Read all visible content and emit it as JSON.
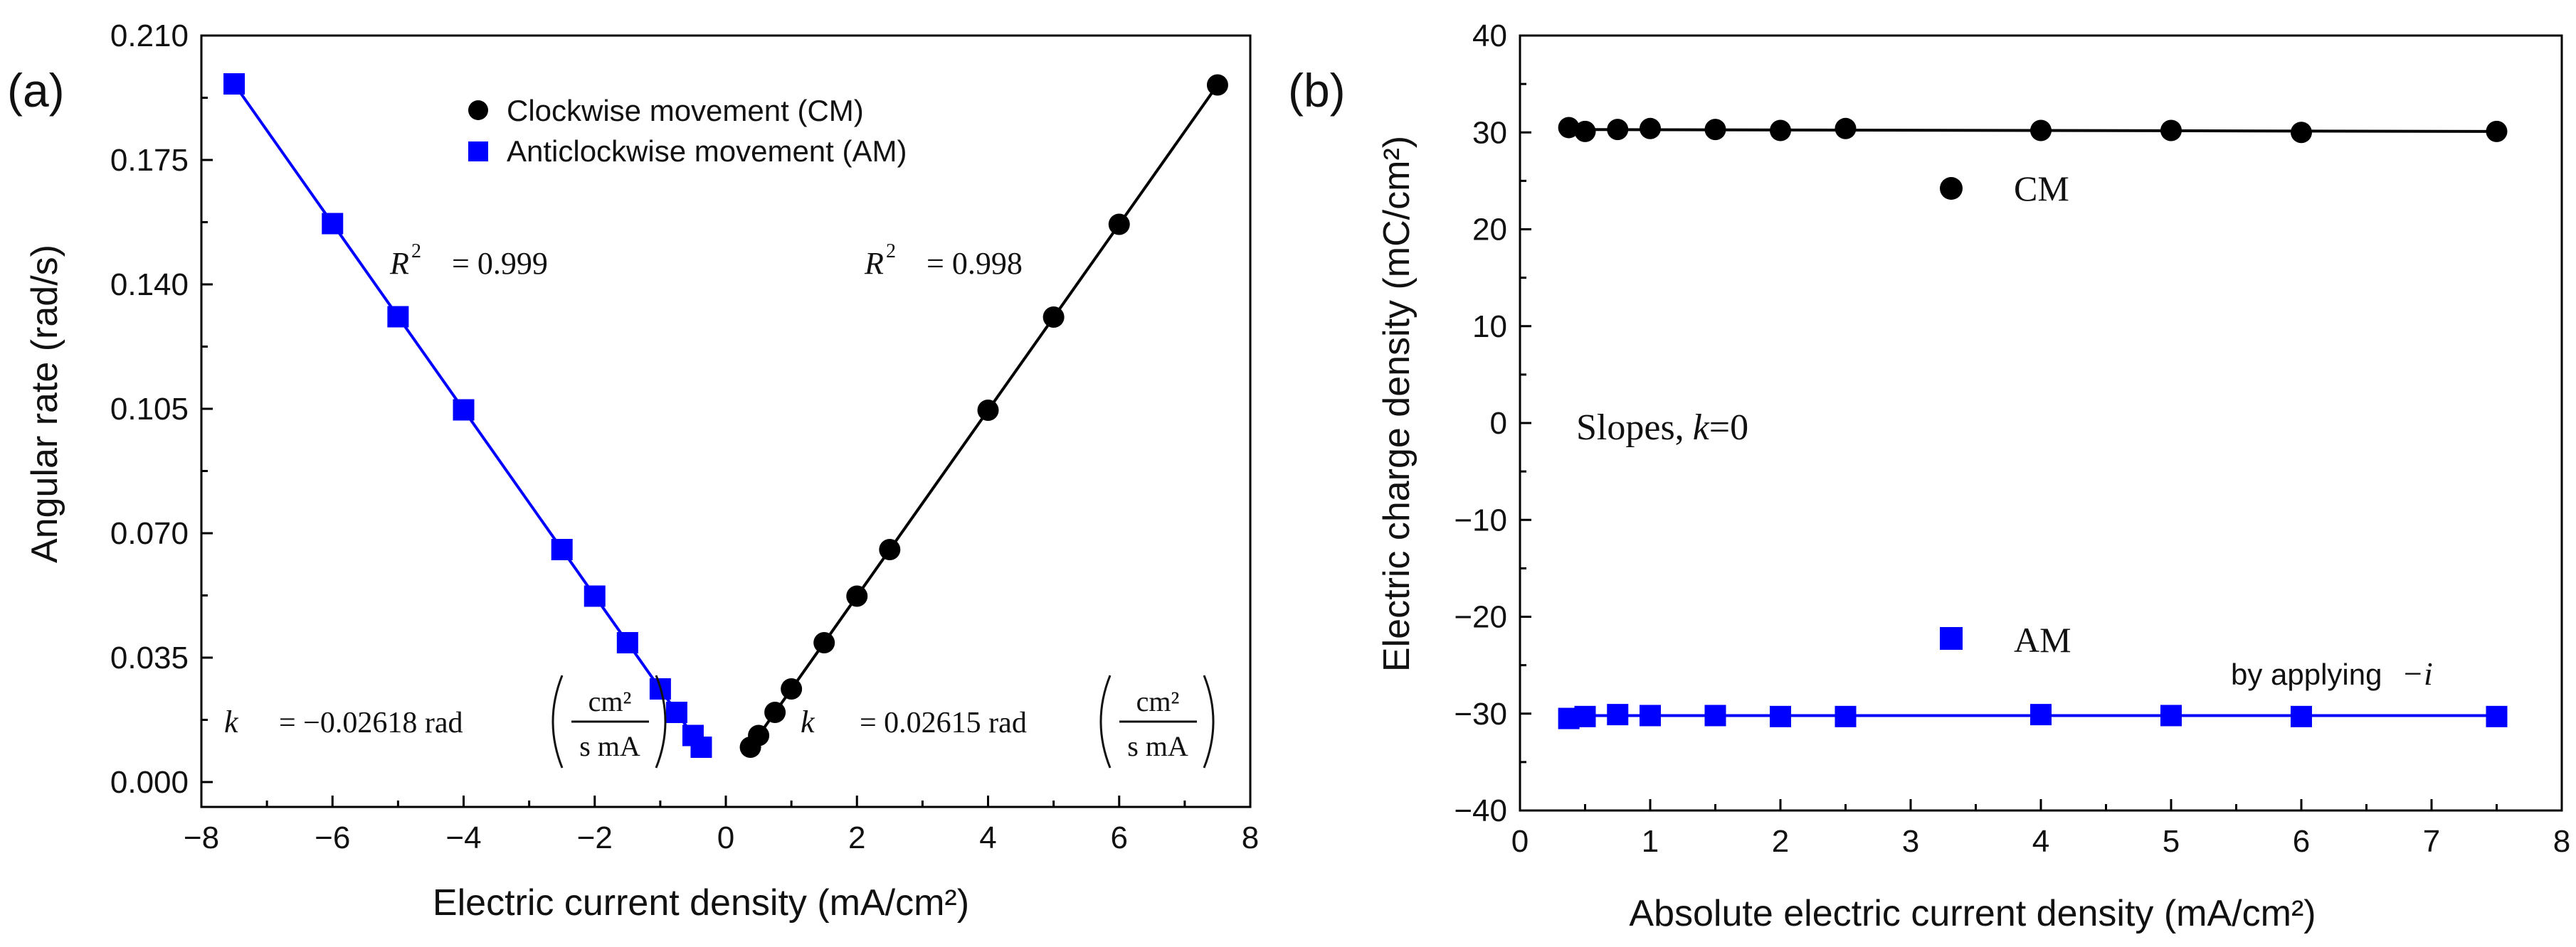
{
  "chart_data": [
    {
      "panel": "(a)",
      "type": "scatter",
      "xlabel": "Electric current density (mA/cm²)",
      "ylabel": "Angular rate (rad/s)",
      "xlim": [
        -8,
        8
      ],
      "ylim": [
        -0.007,
        0.21
      ],
      "xticks": [
        -8,
        -6,
        -4,
        -2,
        0,
        2,
        4,
        6,
        8
      ],
      "xtick_labels": [
        "−8",
        "−6",
        "−4",
        "−2",
        "0",
        "2",
        "4",
        "6",
        "8"
      ],
      "yticks": [
        0.0,
        0.035,
        0.07,
        0.105,
        0.14,
        0.175,
        0.21
      ],
      "ytick_labels": [
        "0.000",
        "0.035",
        "0.070",
        "0.105",
        "0.140",
        "0.175",
        "0.210"
      ],
      "legend_position": "top-center",
      "series": [
        {
          "name": "Clockwise movement (CM)",
          "marker": "circle",
          "color": "#000000",
          "x": [
            0.375,
            0.5,
            0.75,
            1.0,
            1.5,
            2.0,
            2.5,
            4.0,
            5.0,
            6.0,
            7.5
          ],
          "y": [
            0.0098,
            0.0131,
            0.0196,
            0.0262,
            0.0392,
            0.0523,
            0.0654,
            0.1046,
            0.1308,
            0.1569,
            0.1961
          ],
          "fit": {
            "x": [
              0.375,
              7.5
            ],
            "y": [
              0.0098,
              0.1961
            ]
          },
          "r2_prefix": "R",
          "r2_sup": "2",
          "r2_text": "= 0.998",
          "k_symbol": "k",
          "k_text": "= 0.02615 rad"
        },
        {
          "name": "Anticlockwise movement (AM)",
          "marker": "square",
          "color": "#0000ff",
          "x": [
            -0.375,
            -0.5,
            -0.75,
            -1.0,
            -1.5,
            -2.0,
            -2.5,
            -4.0,
            -5.0,
            -6.0,
            -7.5
          ],
          "y": [
            0.0098,
            0.0131,
            0.0196,
            0.0262,
            0.0392,
            0.0523,
            0.0654,
            0.1047,
            0.1309,
            0.1571,
            0.1964
          ],
          "fit": {
            "x": [
              -0.375,
              -7.5
            ],
            "y": [
              0.0098,
              0.1964
            ]
          },
          "r2_prefix": "R",
          "r2_sup": "2",
          "r2_text": "= 0.999",
          "k_symbol": "k",
          "k_text": "= −0.02618 rad"
        }
      ],
      "unit_fraction": {
        "numerator": "cm²",
        "denominator": "s mA"
      }
    },
    {
      "panel": "(b)",
      "type": "scatter",
      "xlabel": "Absolute electric current density (mA/cm²)",
      "ylabel": "Electric charge density (mC/cm²)",
      "xlim": [
        0,
        8
      ],
      "ylim": [
        -40,
        40
      ],
      "xticks": [
        0,
        1,
        2,
        3,
        4,
        5,
        6,
        7,
        8
      ],
      "xtick_labels": [
        "0",
        "1",
        "2",
        "3",
        "4",
        "5",
        "6",
        "7",
        "8"
      ],
      "yticks": [
        -40,
        -30,
        -20,
        -10,
        0,
        10,
        20,
        30,
        40
      ],
      "ytick_labels": [
        "−40",
        "−30",
        "−20",
        "−10",
        "0",
        "10",
        "20",
        "30",
        "40"
      ],
      "series": [
        {
          "name": "CM",
          "marker": "circle",
          "color": "#000000",
          "x": [
            0.375,
            0.5,
            0.75,
            1.0,
            1.5,
            2.0,
            2.5,
            4.0,
            5.0,
            6.0,
            7.5
          ],
          "y": [
            30.5,
            30.1,
            30.3,
            30.4,
            30.3,
            30.2,
            30.4,
            30.2,
            30.2,
            30.0,
            30.1
          ],
          "fit": {
            "x": [
              0.375,
              7.5
            ],
            "y": [
              30.3,
              30.1
            ]
          }
        },
        {
          "name": "AM",
          "marker": "square",
          "color": "#0000ff",
          "x": [
            0.375,
            0.5,
            0.75,
            1.0,
            1.5,
            2.0,
            2.5,
            4.0,
            5.0,
            6.0,
            7.5
          ],
          "y": [
            -30.5,
            -30.3,
            -30.1,
            -30.2,
            -30.2,
            -30.3,
            -30.3,
            -30.1,
            -30.2,
            -30.3,
            -30.3
          ],
          "fit": {
            "x": [
              0.375,
              7.5
            ],
            "y": [
              -30.2,
              -30.2
            ]
          }
        }
      ],
      "annotations": {
        "slopes_text": "Slopes,",
        "k_symbol": "k",
        "k_value": "=0",
        "applying_text": "by applying",
        "applying_symbol": "−i"
      }
    }
  ]
}
